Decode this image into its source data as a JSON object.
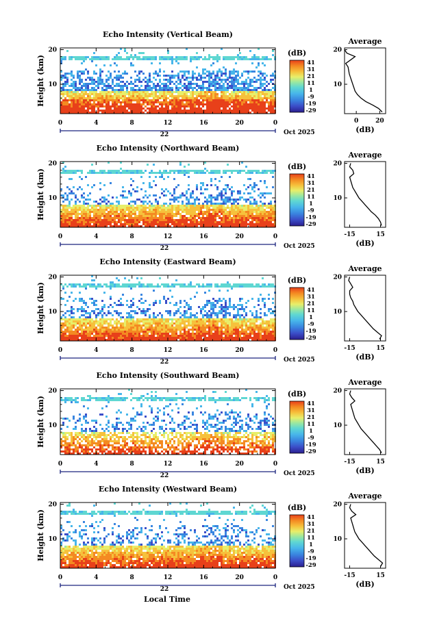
{
  "figure": {
    "xlabel": "Local Time",
    "ylabel": "Height (km)",
    "day_label": "22",
    "date_label": "Oct 2025",
    "colorbar_title": "(dB)",
    "colorbar_ticks": [
      "41",
      "31",
      "21",
      "11",
      "1",
      "-9",
      "-19",
      "-29"
    ],
    "avg_title": "Average",
    "avg_xlabel": "(dB)",
    "colors": {
      "scale": [
        "#2b1e8f",
        "#3b4ec8",
        "#3a86e0",
        "#47b6ea",
        "#5fd7d2",
        "#9be8a0",
        "#e8ee6a",
        "#f6c13c",
        "#f48a22",
        "#e8401a"
      ]
    }
  },
  "chart_data": [
    {
      "type": "heatmap",
      "title": "Echo Intensity (Vertical Beam)",
      "x_ticks": [
        "0",
        "4",
        "8",
        "12",
        "16",
        "20",
        "0"
      ],
      "y_ticks": [
        "20",
        "10"
      ],
      "xlim": [
        0,
        24
      ],
      "ylim": [
        1.5,
        20.5
      ],
      "avg_profile": {
        "x_ticks": [
          "0",
          "20"
        ],
        "y_ticks": [
          "20",
          "10"
        ],
        "xlim": [
          -10,
          25
        ],
        "heights": [
          2,
          3,
          4,
          5,
          6,
          7,
          8,
          9,
          10,
          11,
          12,
          13,
          14,
          15,
          16,
          17,
          18,
          19,
          20
        ],
        "values": [
          22,
          19,
          14,
          8,
          4,
          1,
          -1,
          -2,
          -3,
          -4,
          -5,
          -6,
          -6.5,
          -7,
          -9,
          -5,
          -1,
          -8,
          -10
        ]
      }
    },
    {
      "type": "heatmap",
      "title": "Echo Intensity (Northward Beam)",
      "x_ticks": [
        "0",
        "4",
        "8",
        "12",
        "16",
        "20",
        "0"
      ],
      "y_ticks": [
        "20",
        "10"
      ],
      "xlim": [
        0,
        24
      ],
      "ylim": [
        1.5,
        20.5
      ],
      "avg_profile": {
        "x_ticks": [
          "-15",
          "15"
        ],
        "y_ticks": [
          "20",
          "10"
        ],
        "xlim": [
          -20,
          20
        ],
        "heights": [
          2,
          3,
          4,
          5,
          6,
          7,
          8,
          9,
          10,
          11,
          12,
          13,
          14,
          15,
          16,
          17,
          18,
          19,
          20
        ],
        "values": [
          16,
          15,
          13,
          10,
          6,
          3,
          0,
          -3,
          -6,
          -8,
          -10,
          -12,
          -13,
          -14,
          -15,
          -11,
          -12,
          -15,
          -14
        ]
      }
    },
    {
      "type": "heatmap",
      "title": "Echo Intensity (Eastward Beam)",
      "x_ticks": [
        "0",
        "4",
        "8",
        "12",
        "16",
        "20",
        "0"
      ],
      "y_ticks": [
        "20",
        "10"
      ],
      "xlim": [
        0,
        24
      ],
      "ylim": [
        1.5,
        20.5
      ],
      "avg_profile": {
        "x_ticks": [
          "-15",
          "15"
        ],
        "y_ticks": [
          "20",
          "10"
        ],
        "xlim": [
          -20,
          20
        ],
        "heights": [
          2,
          3,
          4,
          5,
          6,
          7,
          8,
          9,
          10,
          11,
          12,
          13,
          14,
          15,
          16,
          17,
          18,
          19,
          20
        ],
        "values": [
          14,
          16,
          12,
          8,
          5,
          2,
          -1,
          -4,
          -7,
          -9,
          -11,
          -12,
          -14,
          -15,
          -15,
          -12,
          -14,
          -16,
          -15
        ]
      }
    },
    {
      "type": "heatmap",
      "title": "Echo Intensity (Southward Beam)",
      "x_ticks": [
        "0",
        "4",
        "8",
        "12",
        "16",
        "20",
        "0"
      ],
      "y_ticks": [
        "20",
        "10"
      ],
      "xlim": [
        0,
        24
      ],
      "ylim": [
        1.5,
        20.5
      ],
      "avg_profile": {
        "x_ticks": [
          "-15",
          "15"
        ],
        "y_ticks": [
          "20",
          "10"
        ],
        "xlim": [
          -20,
          20
        ],
        "heights": [
          2,
          3,
          4,
          5,
          6,
          7,
          8,
          9,
          10,
          11,
          12,
          13,
          14,
          15,
          16,
          17,
          18,
          19,
          20
        ],
        "values": [
          16,
          14,
          11,
          8,
          5,
          2,
          -1,
          -4,
          -6,
          -8,
          -10,
          -11,
          -12,
          -13,
          -14,
          -10,
          -13,
          -15,
          -14
        ]
      }
    },
    {
      "type": "heatmap",
      "title": "Echo Intensity (Westward Beam)",
      "x_ticks": [
        "0",
        "4",
        "8",
        "12",
        "16",
        "20",
        "0"
      ],
      "y_ticks": [
        "20",
        "10"
      ],
      "xlim": [
        0,
        24
      ],
      "ylim": [
        1.5,
        20.5
      ],
      "avg_profile": {
        "x_ticks": [
          "-15",
          "15"
        ],
        "y_ticks": [
          "20",
          "10"
        ],
        "xlim": [
          -20,
          20
        ],
        "heights": [
          2,
          3,
          4,
          5,
          6,
          7,
          8,
          9,
          10,
          11,
          12,
          13,
          14,
          15,
          16,
          17,
          18,
          19,
          20
        ],
        "values": [
          15,
          17,
          13,
          9,
          6,
          3,
          0,
          -3,
          -6,
          -8,
          -10,
          -11,
          -12,
          -13,
          -14,
          -9,
          -13,
          -15,
          -14
        ]
      }
    }
  ]
}
